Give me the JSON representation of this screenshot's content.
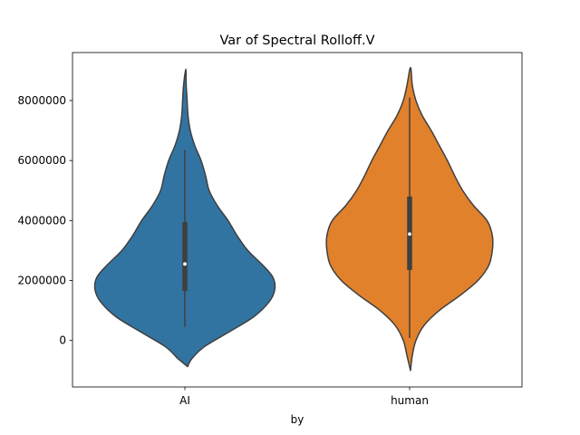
{
  "chart_data": {
    "type": "violin",
    "title": "Var of Spectral Rolloff.V",
    "xlabel": "by",
    "ylabel": "",
    "categories": [
      "AI",
      "human"
    ],
    "ylim": [
      -1550000,
      9600000
    ],
    "yticks": [
      0,
      2000000,
      4000000,
      6000000,
      8000000
    ],
    "ytick_labels": [
      "0",
      "2000000",
      "4000000",
      "6000000",
      "8000000"
    ],
    "grid": false,
    "legend": "none",
    "violins": [
      {
        "category": "AI",
        "color": "#3274a1",
        "median": 2550000,
        "q1": 1650000,
        "q3": 3950000,
        "whisker_low": 450000,
        "whisker_high": 6350000,
        "density": [
          [
            -870000,
            0.03
          ],
          [
            -600000,
            0.08
          ],
          [
            -200000,
            0.22
          ],
          [
            300000,
            0.5
          ],
          [
            800000,
            0.77
          ],
          [
            1300000,
            0.94
          ],
          [
            1700000,
            1.0
          ],
          [
            2100000,
            0.98
          ],
          [
            2500000,
            0.87
          ],
          [
            3000000,
            0.7
          ],
          [
            3500000,
            0.58
          ],
          [
            4000000,
            0.48
          ],
          [
            4500000,
            0.36
          ],
          [
            5000000,
            0.27
          ],
          [
            5500000,
            0.23
          ],
          [
            6000000,
            0.18
          ],
          [
            6500000,
            0.11
          ],
          [
            7000000,
            0.06
          ],
          [
            7500000,
            0.035
          ],
          [
            8000000,
            0.025
          ],
          [
            8500000,
            0.015
          ],
          [
            9050000,
            0.01
          ]
        ]
      },
      {
        "category": "human",
        "color": "#e1812c",
        "median": 3550000,
        "q1": 2350000,
        "q3": 4800000,
        "whisker_low": 80000,
        "whisker_high": 8100000,
        "density": [
          [
            -1000000,
            0.01
          ],
          [
            -500000,
            0.03
          ],
          [
            0,
            0.07
          ],
          [
            500000,
            0.16
          ],
          [
            1000000,
            0.33
          ],
          [
            1500000,
            0.56
          ],
          [
            2000000,
            0.76
          ],
          [
            2500000,
            0.88
          ],
          [
            3000000,
            0.92
          ],
          [
            3500000,
            0.92
          ],
          [
            4000000,
            0.86
          ],
          [
            4500000,
            0.71
          ],
          [
            5000000,
            0.59
          ],
          [
            5500000,
            0.5
          ],
          [
            6000000,
            0.42
          ],
          [
            6500000,
            0.33
          ],
          [
            7000000,
            0.24
          ],
          [
            7500000,
            0.14
          ],
          [
            8000000,
            0.07
          ],
          [
            8500000,
            0.03
          ],
          [
            9100000,
            0.01
          ]
        ]
      }
    ]
  }
}
